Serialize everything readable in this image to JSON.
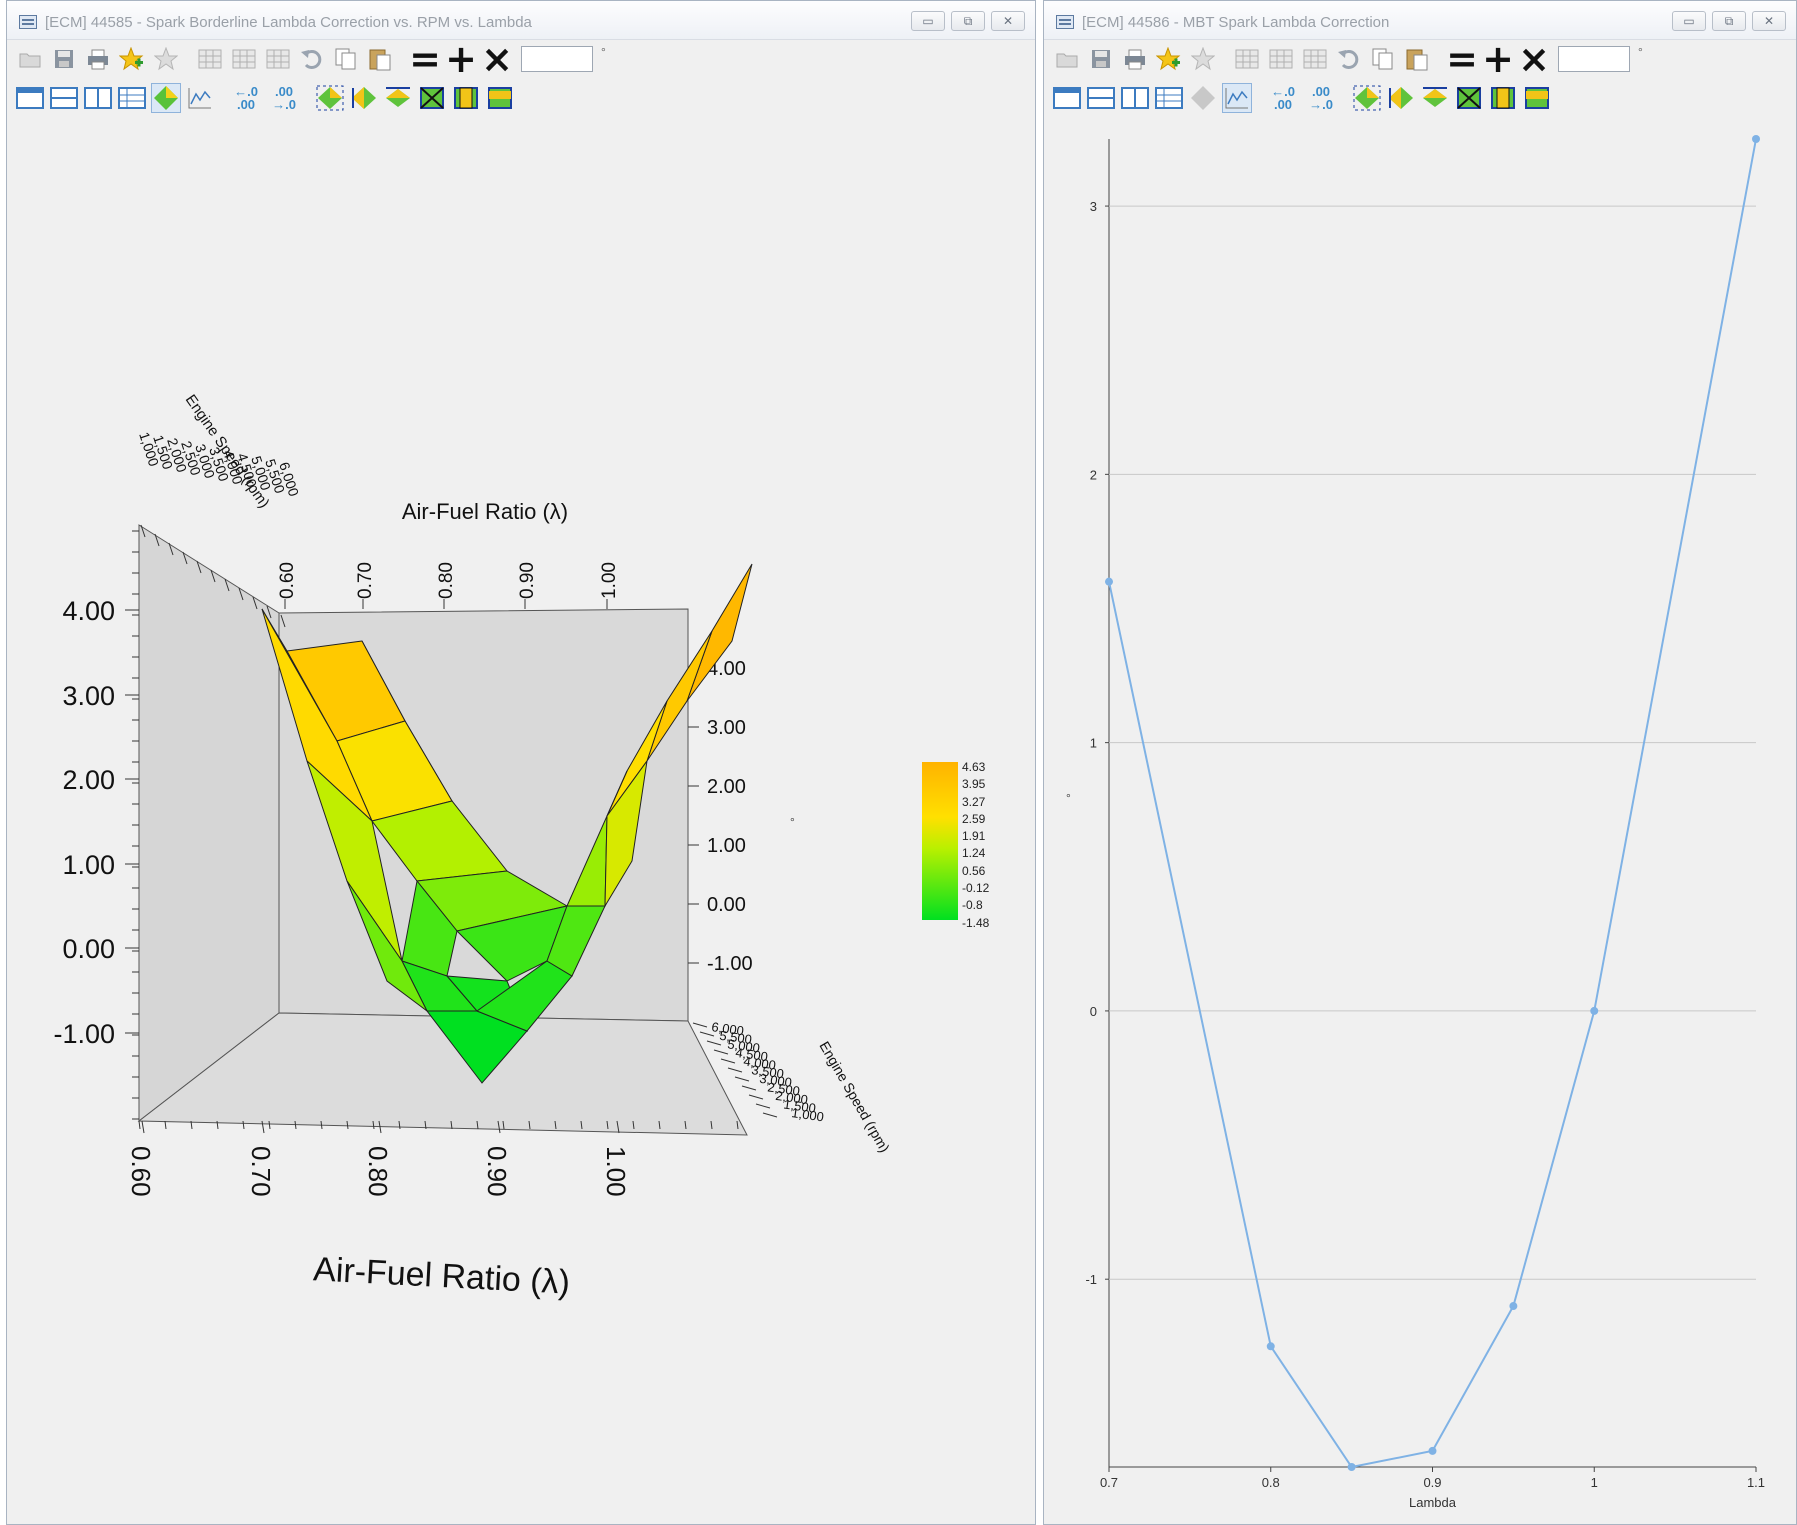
{
  "left_window": {
    "title": "[ECM] 44585 - Spark Borderline Lambda Correction vs. RPM vs. Lambda",
    "controls": [
      "▭",
      "⧉",
      "✕"
    ],
    "degree_mark": "°",
    "chart": {
      "z_ticks": [
        "4.00",
        "3.00",
        "2.00",
        "1.00",
        "0.00",
        "-1.00"
      ],
      "x_ticks": [
        "0.60",
        "0.70",
        "0.80",
        "0.90",
        "1.00"
      ],
      "back_x_ticks": [
        "0.60",
        "0.70",
        "0.80",
        "0.90",
        "1.00"
      ],
      "right_z_ticks": [
        "4.00",
        "3.00",
        "2.00",
        "1.00",
        "0.00",
        "-1.00"
      ],
      "rpm_ticks": [
        "1,000",
        "1,500",
        "2,000",
        "2,500",
        "3,000",
        "3,500",
        "4,000",
        "4,500",
        "5,000",
        "5,500",
        "6,000"
      ],
      "axis_label_x": "Air-Fuel Ratio (λ)",
      "axis_label_rpm": "Engine Speed (rpm)",
      "legend_values": [
        "4.63",
        "3.95",
        "3.27",
        "2.59",
        "1.91",
        "1.24",
        "0.56",
        "-0.12",
        "-0.8",
        "-1.48"
      ],
      "degree_mark": "°"
    }
  },
  "right_window": {
    "title": "[ECM] 44586 - MBT Spark Lambda Correction",
    "controls": [
      "▭",
      "⧉",
      "✕"
    ],
    "degree_mark": "°"
  },
  "chart_data": [
    {
      "type": "surface",
      "title": "",
      "xlabel": "Air-Fuel Ratio (λ)",
      "ylabel": "Engine Speed (rpm)",
      "x": [
        0.7,
        0.75,
        0.8,
        0.85,
        0.9,
        0.95,
        1.0,
        1.05
      ],
      "y_range": [
        1000,
        6000
      ],
      "z_range": [
        -1.48,
        4.63
      ],
      "zlim": [
        -2,
        4.5
      ]
    },
    {
      "type": "line",
      "xlabel": "Lambda",
      "ylabel": "",
      "x": [
        0.7,
        0.8,
        0.85,
        0.9,
        0.95,
        1.0,
        1.1
      ],
      "values": [
        1.6,
        -1.25,
        -1.7,
        -1.64,
        -1.1,
        0.0,
        3.25
      ],
      "x_ticks": [
        "0.7",
        "0.8",
        "0.9",
        "1",
        "1.1"
      ],
      "y_ticks": [
        "3",
        "2",
        "1",
        "0",
        "-1"
      ],
      "xlim": [
        0.7,
        1.1
      ],
      "ylim": [
        -1.7,
        3.25
      ],
      "grid": true,
      "color": "#7fb2e5"
    }
  ]
}
